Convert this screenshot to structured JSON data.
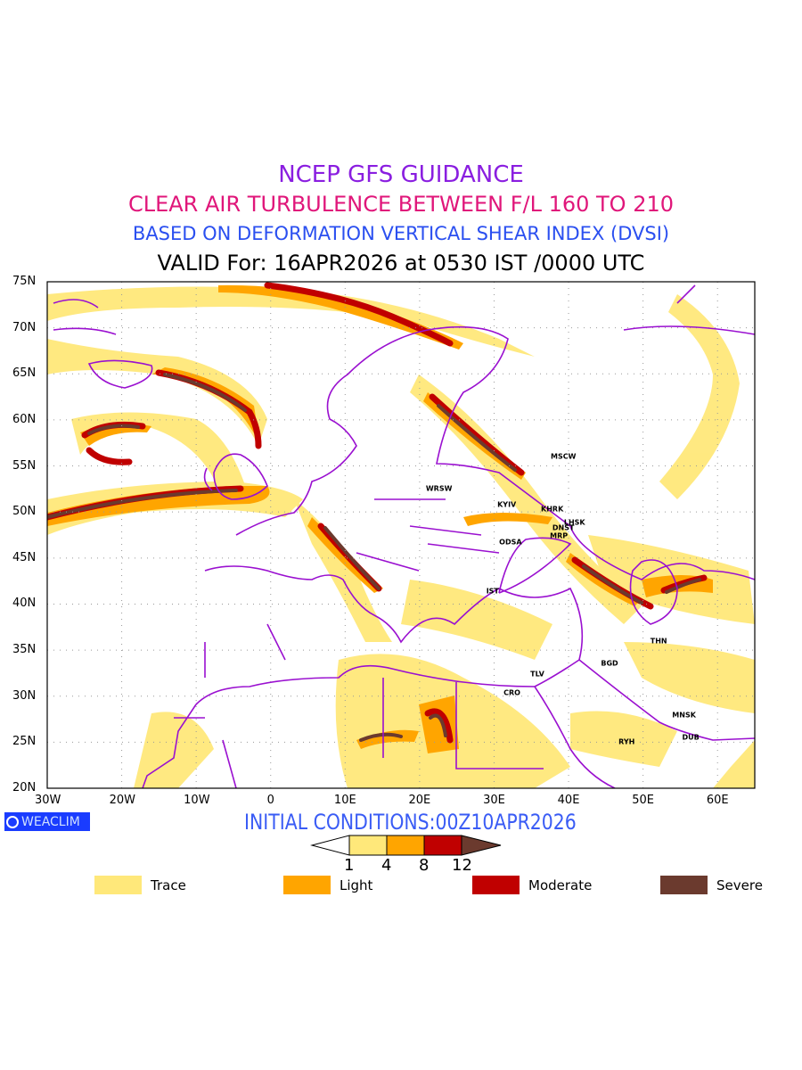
{
  "titles": {
    "line1": "NCEP GFS GUIDANCE",
    "line2": "CLEAR AIR TURBULENCE BETWEEN F/L 160 TO 210",
    "line3": "BASED ON DEFORMATION VERTICAL SHEAR INDEX (DVSI)",
    "line4": "VALID For: 16APR2026 at 0530 IST /0000 UTC"
  },
  "axes": {
    "lon_range": [
      -30,
      65
    ],
    "lat_range": [
      20,
      75
    ],
    "lon_ticks": [
      "30W",
      "20W",
      "10W",
      "0",
      "10E",
      "20E",
      "30E",
      "40E",
      "50E",
      "60E"
    ],
    "lat_ticks": [
      "75N",
      "70N",
      "65N",
      "60N",
      "55N",
      "50N",
      "45N",
      "40N",
      "35N",
      "30N",
      "25N",
      "20N"
    ]
  },
  "initial_conditions": "INITIAL CONDITIONS:00Z10APR2026",
  "logo_text": "WEACLIM",
  "colorbar": {
    "levels": [
      "1",
      "4",
      "8",
      "12"
    ],
    "colors": [
      "#ffe87a",
      "#ffa500",
      "#c00000",
      "#6b3a2e"
    ]
  },
  "legend": [
    {
      "label": "Trace",
      "color": "#ffe87a"
    },
    {
      "label": "Light",
      "color": "#ffa500"
    },
    {
      "label": "Moderate",
      "color": "#c00000"
    },
    {
      "label": "Severe",
      "color": "#6b3a2e"
    }
  ],
  "cities": [
    {
      "name": "MSCW",
      "lon": 39.3,
      "lat": 56.0
    },
    {
      "name": "WRSW",
      "lon": 22.6,
      "lat": 52.5
    },
    {
      "name": "KYIV",
      "lon": 31.7,
      "lat": 50.8
    },
    {
      "name": "KHRK",
      "lon": 37.8,
      "lat": 50.3
    },
    {
      "name": "LHSK",
      "lon": 40.8,
      "lat": 48.9
    },
    {
      "name": "DNST",
      "lon": 39.3,
      "lat": 48.3
    },
    {
      "name": "MRP",
      "lon": 38.7,
      "lat": 47.4
    },
    {
      "name": "ODSA",
      "lon": 32.2,
      "lat": 46.7
    },
    {
      "name": "IST",
      "lon": 29.8,
      "lat": 41.4
    },
    {
      "name": "THN",
      "lon": 52.1,
      "lat": 36.0
    },
    {
      "name": "BGD",
      "lon": 45.5,
      "lat": 33.6
    },
    {
      "name": "TLV",
      "lon": 35.8,
      "lat": 32.4
    },
    {
      "name": "CRO",
      "lon": 32.4,
      "lat": 30.4
    },
    {
      "name": "MNSK",
      "lon": 55.5,
      "lat": 27.9
    },
    {
      "name": "RYH",
      "lon": 47.8,
      "lat": 25.0
    },
    {
      "name": "DUB",
      "lon": 56.4,
      "lat": 25.5
    }
  ]
}
